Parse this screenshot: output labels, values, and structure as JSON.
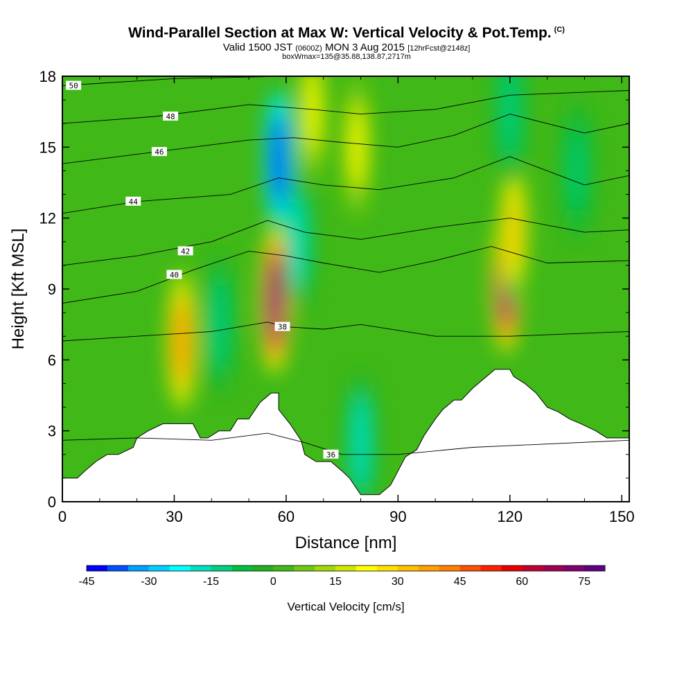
{
  "header": {
    "title": "Wind-Parallel Section at Max W: Vertical Velocity & Pot.Temp.",
    "title_mark": "(C)",
    "subtitle_prefix": "Valid 1500 JST",
    "subtitle_utc": "(0600Z)",
    "subtitle_date": "MON 3 Aug 2015",
    "subtitle_fcst": "[12hrFcst@2148z]",
    "subtitle2": "boxWmax=135@35.88,138.87,2717m"
  },
  "chart_data": {
    "type": "heatmap",
    "xlabel": "Distance [nm]",
    "ylabel": "Height [Kft MSL]",
    "xlim": [
      0,
      152
    ],
    "ylim": [
      0,
      18
    ],
    "xticks": [
      "0",
      "30",
      "60",
      "90",
      "120",
      "150"
    ],
    "yticks": [
      "0",
      "3",
      "6",
      "9",
      "12",
      "15",
      "18"
    ],
    "colorbar": {
      "label": "Vertical Velocity [cm/s]",
      "ticks": [
        "-45",
        "-30",
        "-15",
        "0",
        "15",
        "30",
        "45",
        "60",
        "75"
      ],
      "range": [
        -45,
        80
      ],
      "colors": [
        "#0000ff",
        "#0050ff",
        "#00a0ff",
        "#00d0ff",
        "#00ffff",
        "#00e0c0",
        "#00d080",
        "#00c040",
        "#20b020",
        "#40b818",
        "#70c810",
        "#a0d808",
        "#d0e800",
        "#ffff00",
        "#ffe000",
        "#ffc000",
        "#ffa000",
        "#ff8000",
        "#ff5000",
        "#ff2000",
        "#e80000",
        "#c00030",
        "#a00050",
        "#800070",
        "#600080"
      ]
    },
    "terrain_kft": [
      [
        0,
        1.0
      ],
      [
        4,
        1.0
      ],
      [
        6,
        1.3
      ],
      [
        9,
        1.7
      ],
      [
        12,
        2.0
      ],
      [
        15,
        2.0
      ],
      [
        19,
        2.3
      ],
      [
        20,
        2.7
      ],
      [
        23,
        3.0
      ],
      [
        27,
        3.3
      ],
      [
        35,
        3.3
      ],
      [
        37,
        2.7
      ],
      [
        39,
        2.7
      ],
      [
        42,
        3.0
      ],
      [
        45,
        3.0
      ],
      [
        47,
        3.5
      ],
      [
        50,
        3.5
      ],
      [
        53,
        4.2
      ],
      [
        56,
        4.6
      ],
      [
        58,
        4.6
      ],
      [
        58,
        3.9
      ],
      [
        61,
        3.3
      ],
      [
        64,
        2.6
      ],
      [
        65,
        2.0
      ],
      [
        68,
        1.7
      ],
      [
        72,
        1.7
      ],
      [
        75,
        1.3
      ],
      [
        77,
        1.0
      ],
      [
        80,
        0.3
      ],
      [
        85,
        0.3
      ],
      [
        88,
        0.7
      ],
      [
        90,
        1.3
      ],
      [
        92,
        1.9
      ],
      [
        95,
        2.2
      ],
      [
        97,
        2.8
      ],
      [
        100,
        3.5
      ],
      [
        102,
        3.9
      ],
      [
        105,
        4.3
      ],
      [
        107,
        4.3
      ],
      [
        110,
        4.8
      ],
      [
        113,
        5.2
      ],
      [
        116,
        5.6
      ],
      [
        120,
        5.6
      ],
      [
        121,
        5.3
      ],
      [
        124,
        5.0
      ],
      [
        127,
        4.6
      ],
      [
        130,
        4.0
      ],
      [
        133,
        3.8
      ],
      [
        136,
        3.5
      ],
      [
        139,
        3.3
      ],
      [
        143,
        3.0
      ],
      [
        146,
        2.7
      ],
      [
        152,
        2.7
      ]
    ],
    "updraft_cores": [
      {
        "x": 57,
        "y": 8.5,
        "w": 80
      },
      {
        "x": 119,
        "y": 9.3,
        "w": 75
      },
      {
        "x": 32,
        "y": 6.8,
        "w": 40
      },
      {
        "x": 79,
        "y": 15.0,
        "w": 20
      },
      {
        "x": 67,
        "y": 16.5,
        "w": 20
      },
      {
        "x": 121,
        "y": 11.5,
        "w": 30
      }
    ],
    "downdraft_cores": [
      {
        "x": 58,
        "y": 14.5,
        "w": -45
      },
      {
        "x": 80,
        "y": 2.5,
        "w": -20
      },
      {
        "x": 120,
        "y": 16.5,
        "w": -15
      },
      {
        "x": 138,
        "y": 14.0,
        "w": -12
      },
      {
        "x": 42,
        "y": 7.5,
        "w": -15
      },
      {
        "x": 63,
        "y": 11.0,
        "w": -20
      }
    ],
    "isentropes": [
      {
        "value": 36,
        "label": "36",
        "label_x": 72,
        "label_y": 2.0,
        "points": [
          [
            0,
            2.6
          ],
          [
            20,
            2.7
          ],
          [
            40,
            2.6
          ],
          [
            55,
            2.9
          ],
          [
            65,
            2.5
          ],
          [
            75,
            2.0
          ],
          [
            90,
            2.0
          ],
          [
            110,
            2.3
          ],
          [
            152,
            2.6
          ]
        ]
      },
      {
        "value": 38,
        "label": "38",
        "label_x": 59,
        "label_y": 7.4,
        "points": [
          [
            0,
            6.8
          ],
          [
            20,
            7.0
          ],
          [
            40,
            7.2
          ],
          [
            55,
            7.6
          ],
          [
            60,
            7.4
          ],
          [
            70,
            7.3
          ],
          [
            80,
            7.5
          ],
          [
            100,
            7.0
          ],
          [
            120,
            7.0
          ],
          [
            152,
            7.2
          ]
        ]
      },
      {
        "value": 40,
        "label": "40",
        "label_x": 30,
        "label_y": 9.6,
        "points": [
          [
            0,
            8.4
          ],
          [
            20,
            8.9
          ],
          [
            35,
            9.8
          ],
          [
            50,
            10.6
          ],
          [
            60,
            10.4
          ],
          [
            70,
            10.1
          ],
          [
            85,
            9.7
          ],
          [
            100,
            10.2
          ],
          [
            115,
            10.8
          ],
          [
            130,
            10.1
          ],
          [
            152,
            10.2
          ]
        ]
      },
      {
        "value": 42,
        "label": "42",
        "label_x": 33,
        "label_y": 10.6,
        "points": [
          [
            0,
            10.0
          ],
          [
            20,
            10.4
          ],
          [
            40,
            11.0
          ],
          [
            55,
            11.9
          ],
          [
            65,
            11.4
          ],
          [
            80,
            11.1
          ],
          [
            100,
            11.6
          ],
          [
            120,
            12.0
          ],
          [
            140,
            11.4
          ],
          [
            152,
            11.5
          ]
        ]
      },
      {
        "value": 44,
        "label": "44",
        "label_x": 19,
        "label_y": 12.7,
        "points": [
          [
            0,
            12.2
          ],
          [
            20,
            12.7
          ],
          [
            45,
            13.0
          ],
          [
            58,
            13.7
          ],
          [
            70,
            13.4
          ],
          [
            85,
            13.2
          ],
          [
            105,
            13.7
          ],
          [
            120,
            14.6
          ],
          [
            140,
            13.4
          ],
          [
            152,
            13.8
          ]
        ]
      },
      {
        "value": 46,
        "label": "46",
        "label_x": 26,
        "label_y": 14.8,
        "points": [
          [
            0,
            14.3
          ],
          [
            25,
            14.8
          ],
          [
            50,
            15.3
          ],
          [
            62,
            15.4
          ],
          [
            75,
            15.2
          ],
          [
            90,
            15.0
          ],
          [
            105,
            15.5
          ],
          [
            120,
            16.4
          ],
          [
            140,
            15.6
          ],
          [
            152,
            16.0
          ]
        ]
      },
      {
        "value": 48,
        "label": "48",
        "label_x": 29,
        "label_y": 16.3,
        "points": [
          [
            0,
            16.0
          ],
          [
            25,
            16.3
          ],
          [
            50,
            16.8
          ],
          [
            67,
            16.6
          ],
          [
            80,
            16.4
          ],
          [
            100,
            16.6
          ],
          [
            120,
            17.2
          ],
          [
            152,
            17.4
          ]
        ]
      },
      {
        "value": 50,
        "label": "50",
        "label_x": 3,
        "label_y": 17.6,
        "points": [
          [
            0,
            17.6
          ],
          [
            30,
            17.9
          ],
          [
            60,
            18.0
          ]
        ]
      }
    ]
  }
}
